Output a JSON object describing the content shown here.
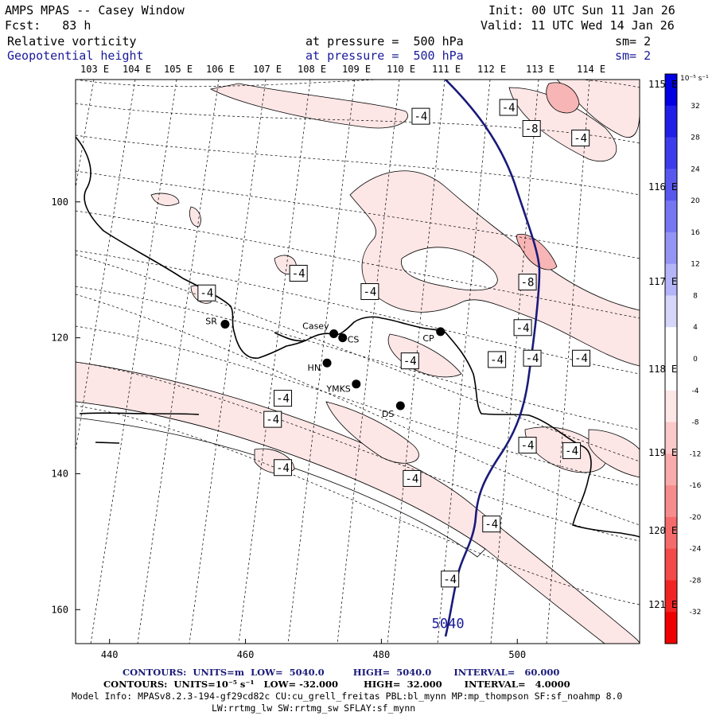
{
  "header": {
    "left": [
      {
        "text": "AMPS MPAS -- Casey Window",
        "color": "#000000"
      },
      {
        "text": "Fcst:   83 h",
        "color": "#000000"
      },
      {
        "text": "Relative vorticity",
        "color": "#000000"
      },
      {
        "text": "Geopotential height",
        "color": "#1a1a9a"
      }
    ],
    "right": [
      {
        "text": "Init: 00 UTC Sun 11 Jan 26"
      },
      {
        "text": "Valid: 11 UTC Wed 14 Jan 26"
      }
    ],
    "pressure": [
      {
        "text": "at pressure =  500 hPa",
        "color": "#000000"
      },
      {
        "text": "at pressure =  500 hPa",
        "color": "#1a1a9a"
      }
    ],
    "smooth": [
      {
        "text": "sm= 2",
        "color": "#000000"
      },
      {
        "text": "sm= 2",
        "color": "#1a1a9a"
      }
    ]
  },
  "lon_labels_top": [
    "103 E",
    "104 E",
    "105 E",
    "106 E",
    "107 E",
    "108 E",
    "109 E",
    "110 E",
    "111 E",
    "112 E",
    "113 E",
    "114 E"
  ],
  "lon_labels_right": [
    "115 E",
    "116 E",
    "117 E",
    "118 E",
    "119 E",
    "120 E",
    "121 E"
  ],
  "axes": {
    "x_ticks": [
      "440",
      "460",
      "480",
      "500"
    ],
    "y_ticks": [
      "100",
      "120",
      "140",
      "160"
    ]
  },
  "stations": [
    {
      "label": "SR",
      "x": 457,
      "y": 118
    },
    {
      "label": "Casey",
      "x": 473,
      "y": 119.4
    },
    {
      "label": "CS",
      "x": 474.3,
      "y": 120
    },
    {
      "label": "HN",
      "x": 472,
      "y": 123.7
    },
    {
      "label": "YMKS",
      "x": 476.3,
      "y": 126.8
    },
    {
      "label": "DS",
      "x": 482.8,
      "y": 130
    },
    {
      "label": "CP",
      "x": 488.7,
      "y": 119.1
    }
  ],
  "contour_labels": [
    {
      "text": "-4",
      "x": 485.8,
      "y": 87.4
    },
    {
      "text": "-4",
      "x": 498.7,
      "y": 86.1
    },
    {
      "text": "-8",
      "x": 502.1,
      "y": 89.2
    },
    {
      "text": "-4",
      "x": 509.3,
      "y": 90.6
    },
    {
      "text": "-4",
      "x": 467.8,
      "y": 110.5
    },
    {
      "text": "-4",
      "x": 478.3,
      "y": 113.2
    },
    {
      "text": "-8",
      "x": 501.5,
      "y": 111.8
    },
    {
      "text": "-4",
      "x": 454.3,
      "y": 113.4
    },
    {
      "text": "-4",
      "x": 500.8,
      "y": 118.5
    },
    {
      "text": "-4",
      "x": 497.0,
      "y": 123.2
    },
    {
      "text": "-4",
      "x": 502.2,
      "y": 123.0
    },
    {
      "text": "-4",
      "x": 509.4,
      "y": 123.0
    },
    {
      "text": "-4",
      "x": 484.2,
      "y": 123.4
    },
    {
      "text": "-4",
      "x": 465.5,
      "y": 128.9
    },
    {
      "text": "-4",
      "x": 464.0,
      "y": 132.0
    },
    {
      "text": "-4",
      "x": 501.5,
      "y": 135.8
    },
    {
      "text": "-4",
      "x": 508.0,
      "y": 136.6
    },
    {
      "text": "-4",
      "x": 465.5,
      "y": 139.1
    },
    {
      "text": "-4",
      "x": 484.5,
      "y": 140.7
    },
    {
      "text": "-4",
      "x": 496.2,
      "y": 147.4
    },
    {
      "text": "-4",
      "x": 490.1,
      "y": 155.5
    }
  ],
  "height_label": {
    "text": "5040",
    "x": 489.8,
    "y": 162.7
  },
  "colorbar": {
    "unit": "10⁻⁵ s⁻¹",
    "labels": [
      "32",
      "28",
      "24",
      "20",
      "16",
      "12",
      "8",
      "4",
      "0",
      "-4",
      "-8",
      "-12",
      "-16",
      "-20",
      "-24",
      "-28",
      "-32"
    ],
    "colors": [
      "#0000e0",
      "#1f1fe8",
      "#3c3cec",
      "#5858ef",
      "#7676f2",
      "#9494f5",
      "#b4b4f8",
      "#d6d6fb",
      "#ffffff",
      "#ffffff",
      "#fde6e6",
      "#fbc9c9",
      "#f9abab",
      "#f78c8c",
      "#f56b6b",
      "#f34a4a",
      "#f12424",
      "#ee0000"
    ]
  },
  "footer": {
    "contours1": "CONTOURS:  UNITS=m  LOW=  5040.0         HIGH=  5040.0       INTERVAL=   60.000",
    "contours2": "CONTOURS:  UNITS=10⁻⁵ s⁻¹   LOW= -32.000        HIGH=  32.000       INTERVAL=   4.0000",
    "model": "Model Info: MPASv8.2.3-194-gf29cd82c CU:cu_grell_freitas PBL:bl_mynn MP:mp_thompson SF:sf_noahmp 8.0",
    "model2": "LW:rrtmg_lw SW:rrtmg_sw SFLAY:sf_mynn"
  }
}
